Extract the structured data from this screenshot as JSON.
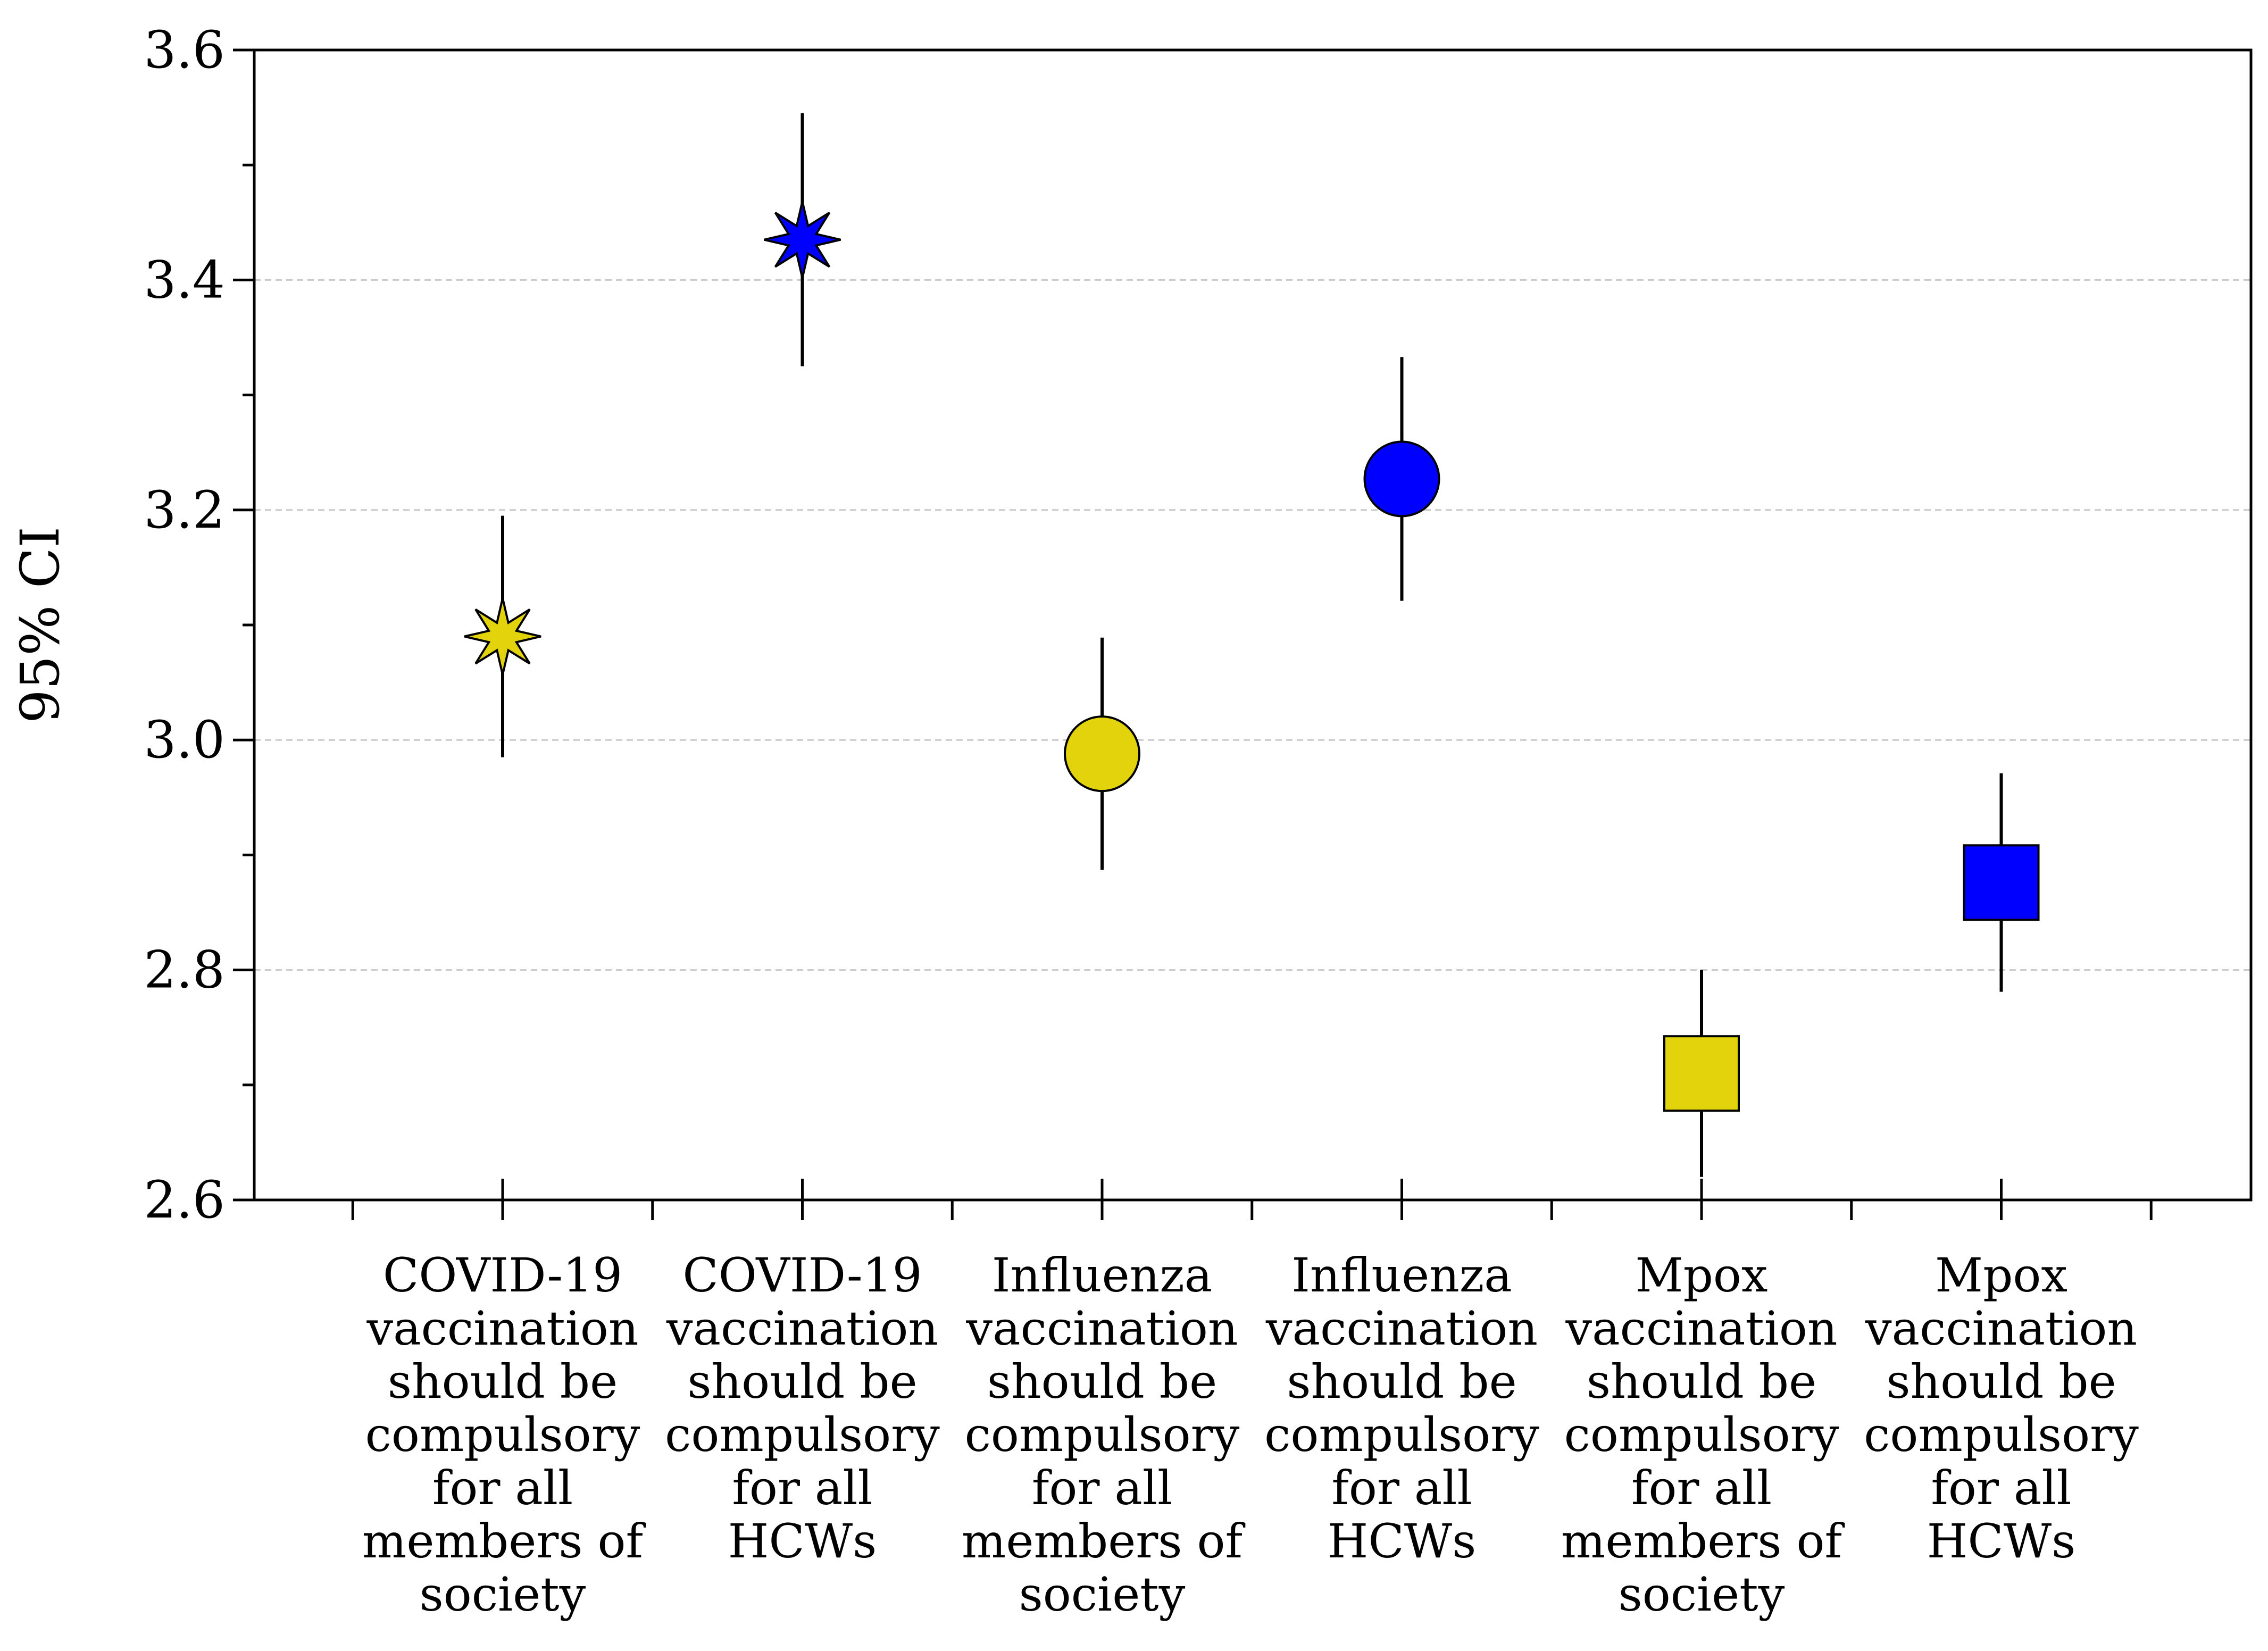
{
  "chart_data": {
    "type": "scatter",
    "title": "",
    "ylabel": "95% CI",
    "xlabel": "",
    "ylim": [
      2.6,
      3.6
    ],
    "yticks": [
      "3.6",
      "3.4",
      "3.2",
      "3.0",
      "2.8",
      "2.6"
    ],
    "grid": "horizontal dashed",
    "categories": [
      "COVID-19 vaccination should be compulsory for all members of society",
      "COVID-19 vaccination should be compulsory for all HCWs",
      "Influenza vaccination should be compulsory for all members of society",
      "Influenza vaccination should be compulsory for all HCWs",
      "Mpox vaccination should be compulsory for all members of society",
      "Mpox vaccination should be compulsory for all HCWs"
    ],
    "category_lines": [
      [
        "COVID-19",
        "vaccination",
        "should be",
        "compulsory",
        "for all",
        "members of",
        "society"
      ],
      [
        "COVID-19",
        "vaccination",
        "should be",
        "compulsory",
        "for all",
        "HCWs"
      ],
      [
        "Influenza",
        "vaccination",
        "should be",
        "compulsory",
        "for all",
        "members of",
        "society"
      ],
      [
        "Influenza",
        "vaccination",
        "should be",
        "compulsory",
        "for all",
        "HCWs"
      ],
      [
        "Mpox",
        "vaccination",
        "should be",
        "compulsory",
        "for all",
        "members of",
        "society"
      ],
      [
        "Mpox",
        "vaccination",
        "should be",
        "compulsory",
        "for all",
        "HCWs"
      ]
    ],
    "points": [
      {
        "mean": 3.09,
        "lower": 2.985,
        "upper": 3.195,
        "marker": "star",
        "color": "#e2d30c"
      },
      {
        "mean": 3.435,
        "lower": 3.325,
        "upper": 3.545,
        "marker": "star",
        "color": "#0000ff"
      },
      {
        "mean": 2.988,
        "lower": 2.887,
        "upper": 3.089,
        "marker": "circle",
        "color": "#e2d30c"
      },
      {
        "mean": 3.227,
        "lower": 3.121,
        "upper": 3.333,
        "marker": "circle",
        "color": "#0000ff"
      },
      {
        "mean": 2.71,
        "lower": 2.62,
        "upper": 2.8,
        "marker": "square",
        "color": "#e2d30c"
      },
      {
        "mean": 2.876,
        "lower": 2.781,
        "upper": 2.971,
        "marker": "square",
        "color": "#0000ff"
      }
    ]
  }
}
